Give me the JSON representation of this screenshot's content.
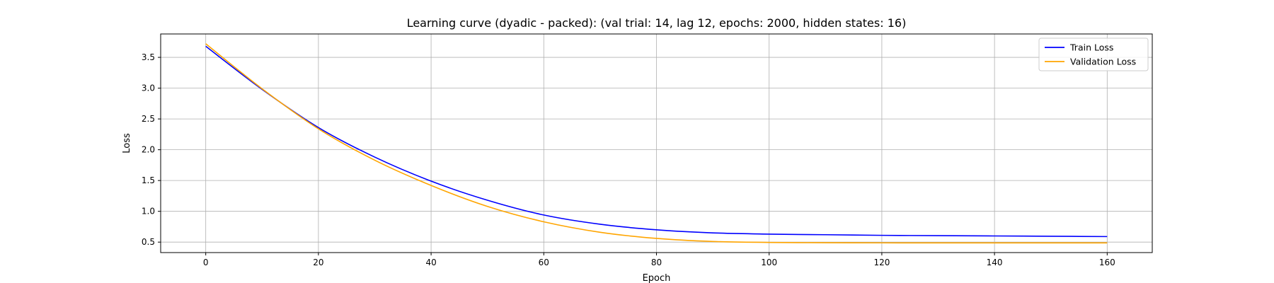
{
  "chart_data": {
    "type": "line",
    "title": "Learning curve (dyadic - packed): (val trial: 14, lag 12, epochs: 2000, hidden states: 16)",
    "xlabel": "Epoch",
    "ylabel": "Loss",
    "xlim": [
      -8,
      168
    ],
    "ylim": [
      0.33,
      3.88
    ],
    "xticks": [
      0,
      20,
      40,
      60,
      80,
      100,
      120,
      140,
      160
    ],
    "yticks": [
      0.5,
      1.0,
      1.5,
      2.0,
      2.5,
      3.0,
      3.5
    ],
    "xtick_labels": [
      "0",
      "20",
      "40",
      "60",
      "80",
      "100",
      "120",
      "140",
      "160"
    ],
    "ytick_labels": [
      "0.5",
      "1.0",
      "1.5",
      "2.0",
      "2.5",
      "3.0",
      "3.5"
    ],
    "grid": true,
    "legend_position": "top-right",
    "x": [
      0,
      10,
      20,
      30,
      40,
      50,
      60,
      70,
      80,
      90,
      100,
      110,
      120,
      130,
      140,
      150,
      160
    ],
    "series": [
      {
        "name": "Train Loss",
        "color": "#0000ff",
        "values": [
          3.68,
          2.98,
          2.36,
          1.88,
          1.49,
          1.18,
          0.94,
          0.79,
          0.7,
          0.65,
          0.63,
          0.62,
          0.61,
          0.605,
          0.6,
          0.595,
          0.59
        ]
      },
      {
        "name": "Validation Loss",
        "color": "#ffa500",
        "values": [
          3.72,
          2.99,
          2.34,
          1.83,
          1.42,
          1.08,
          0.83,
          0.66,
          0.56,
          0.51,
          0.495,
          0.49,
          0.488,
          0.487,
          0.487,
          0.487,
          0.487
        ]
      }
    ]
  }
}
